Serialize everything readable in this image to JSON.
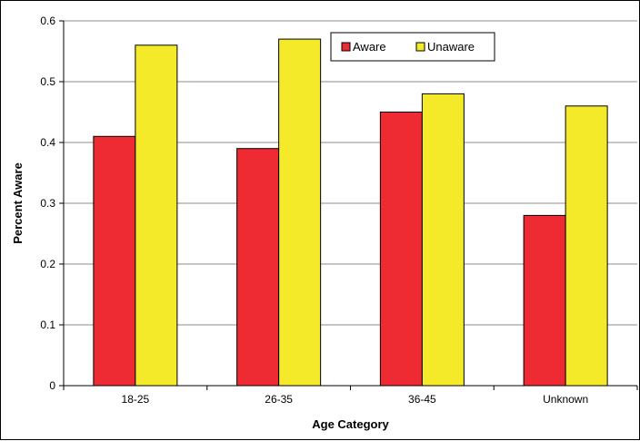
{
  "chart_data": {
    "type": "bar",
    "categories": [
      "18-25",
      "26-35",
      "36-45",
      "Unknown"
    ],
    "series": [
      {
        "name": "Aware",
        "values": [
          0.41,
          0.39,
          0.45,
          0.28
        ],
        "color": "#ee2a33"
      },
      {
        "name": "Unaware",
        "values": [
          0.56,
          0.57,
          0.48,
          0.46
        ],
        "color": "#f5ea2a"
      }
    ],
    "xlabel": "Age Category",
    "ylabel": "Percent Aware",
    "ylim": [
      0,
      0.6
    ],
    "yticks": [
      "0",
      "0.1",
      "0.2",
      "0.3",
      "0.4",
      "0.5",
      "0.6"
    ],
    "grid": true,
    "legend_position": "top-right"
  }
}
